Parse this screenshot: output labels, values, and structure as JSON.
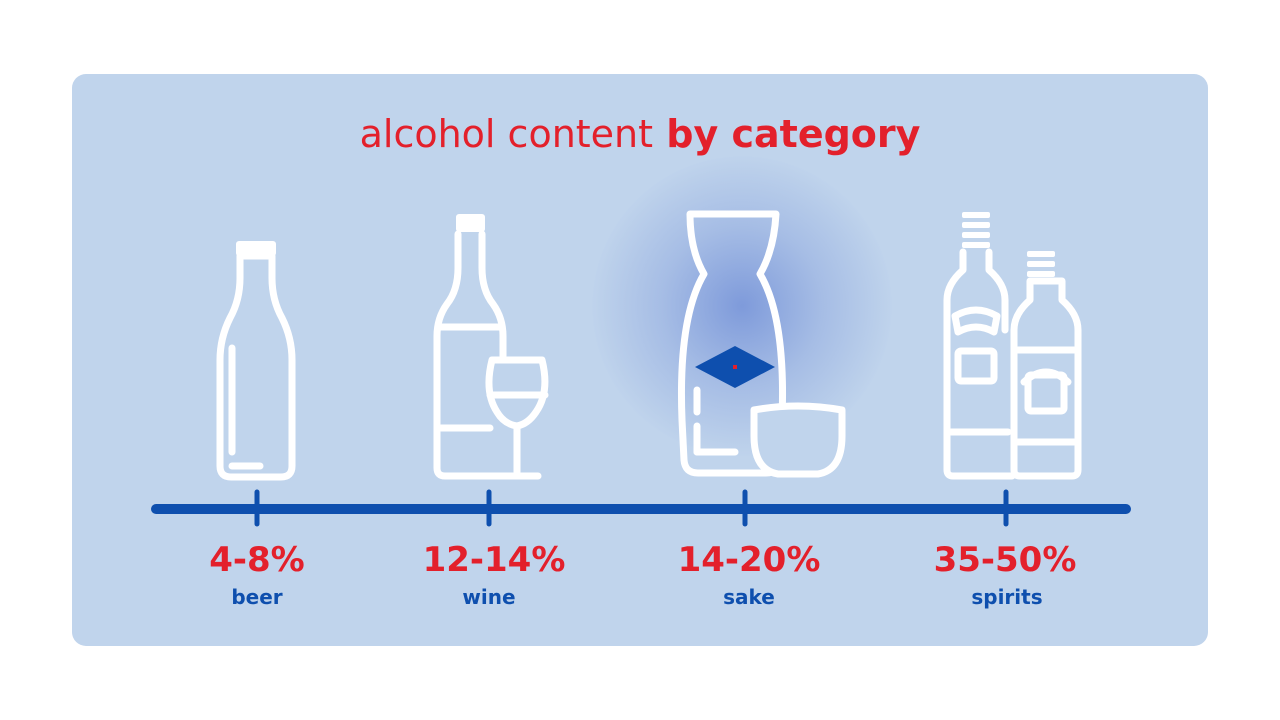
{
  "title": {
    "light": "alcohol content",
    "bold": "by category"
  },
  "categories": [
    {
      "percent": "4-8%",
      "name": "beer",
      "icon": "beer-bottle-icon"
    },
    {
      "percent": "12-14%",
      "name": "wine",
      "icon": "wine-bottle-glass-icon"
    },
    {
      "percent": "14-20%",
      "name": "sake",
      "icon": "sake-carafe-cup-icon"
    },
    {
      "percent": "35-50%",
      "name": "spirits",
      "icon": "spirits-bottles-icon"
    }
  ],
  "colors": {
    "accent": "#e3202b",
    "timeline": "#0e4fae",
    "card": "#c0d4ec",
    "icon": "#ffffff"
  }
}
